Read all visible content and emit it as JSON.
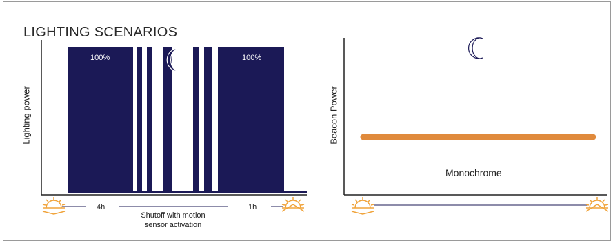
{
  "title": "LIGHTING SCENARIOS",
  "colors": {
    "bar": "#1b1956",
    "beacon": "#e08a3c",
    "sun": "#f0a33a"
  },
  "left_chart": {
    "ylabel": "Lighting power",
    "bar_left_label": "100%",
    "bar_right_label": "100%",
    "segments": {
      "left_duration": "4h",
      "middle_line1": "Shutoff with motion",
      "middle_line2": "sensor activation",
      "right_duration": "1h"
    },
    "icons": [
      "sunset-icon",
      "moon-icon",
      "sunrise-icon"
    ]
  },
  "right_chart": {
    "ylabel": "Beacon Power",
    "series_label": "Monochrome",
    "icons": [
      "moon-icon",
      "sunset-icon",
      "sunrise-icon"
    ]
  },
  "chart_data": [
    {
      "type": "bar",
      "ylabel": "Lighting power",
      "segments": [
        {
          "label": "4h",
          "value": 100
        },
        {
          "label": "Shutoff with motion sensor activation",
          "value": "intermittent"
        },
        {
          "label": "1h",
          "value": 100
        }
      ]
    },
    {
      "type": "line",
      "ylabel": "Beacon Power",
      "series": [
        {
          "name": "Monochrome",
          "level": "constant"
        }
      ]
    }
  ]
}
